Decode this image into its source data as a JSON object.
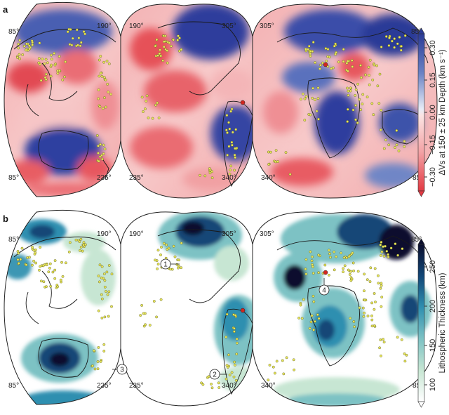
{
  "panels": [
    {
      "label": "a",
      "lobe_top_labels": [
        "190°",
        "190°",
        "305°",
        "305°"
      ],
      "lobe_side_labels": [
        "85°",
        "85°"
      ],
      "lobe_bottom_labels": [
        "85°",
        "235°",
        "235°",
        "340°",
        "340°",
        "85°"
      ],
      "colorbar": {
        "title": "ΔVs at 150 ± 25 km Depth (km s⁻¹)",
        "ticks": [
          "0.30",
          "0.15",
          "0.00",
          "−0.15",
          "−0.30"
        ],
        "colors": [
          "#2b3b97",
          "#6a82c4",
          "#c6d0ea",
          "#fbe4e3",
          "#f3a3a6",
          "#e33a43"
        ]
      }
    },
    {
      "label": "b",
      "lobe_top_labels": [
        "190°",
        "190°",
        "305°",
        "305°"
      ],
      "lobe_side_labels": [
        "85°",
        "85°"
      ],
      "lobe_bottom_labels": [
        "85°",
        "235°",
        "235°",
        "340°",
        "340°",
        "85°"
      ],
      "callouts": [
        "1",
        "2",
        "3",
        "4"
      ],
      "colorbar": {
        "title": "Lithospheric Thickness (km)",
        "ticks": [
          "250",
          "200",
          "150",
          "100"
        ],
        "colors": [
          "#0b0e2e",
          "#124777",
          "#2f8fb0",
          "#7dc2c4",
          "#c7e6d3",
          "#ffffff"
        ]
      }
    }
  ]
}
